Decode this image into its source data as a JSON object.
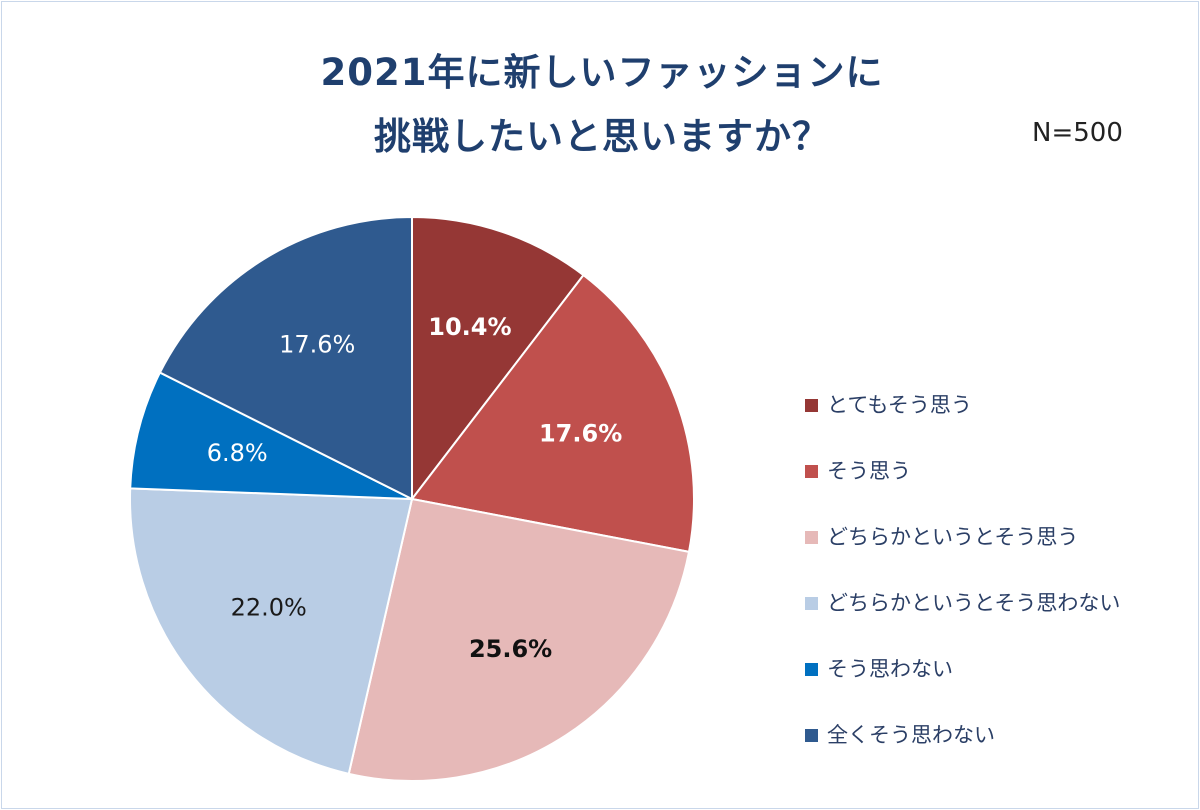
{
  "chart_data": {
    "type": "pie",
    "title_lines": [
      "2021年に新しいファッションに",
      "挑戦したいと思いますか？"
    ],
    "annotation": "N=500",
    "unit": "%",
    "slices": [
      {
        "label": "とてもそう思う",
        "value": 10.4,
        "value_label": "10.4%",
        "color": "#953735",
        "text_color": "#ffffff",
        "bold": true
      },
      {
        "label": "そう思う",
        "value": 17.6,
        "value_label": "17.6%",
        "color": "#c0504d",
        "text_color": "#ffffff",
        "bold": true
      },
      {
        "label": "どちらかというとそう思う",
        "value": 25.6,
        "value_label": "25.6%",
        "color": "#e6b9b8",
        "text_color": "#111111",
        "bold": true
      },
      {
        "label": "どちらかというとそう思わない",
        "value": 22.0,
        "value_label": "22.0%",
        "color": "#b9cde5",
        "text_color": "#1a1a1a",
        "bold": false
      },
      {
        "label": "そう思わない",
        "value": 6.8,
        "value_label": "6.8%",
        "color": "#0070c0",
        "text_color": "#ffffff",
        "bold": false
      },
      {
        "label": "全くそう思わない",
        "value": 17.6,
        "value_label": "17.6%",
        "color": "#2f5a8f",
        "text_color": "#ffffff",
        "bold": false
      }
    ],
    "start_angle_deg": 0,
    "direction": "clockwise",
    "legend_position": "right"
  }
}
